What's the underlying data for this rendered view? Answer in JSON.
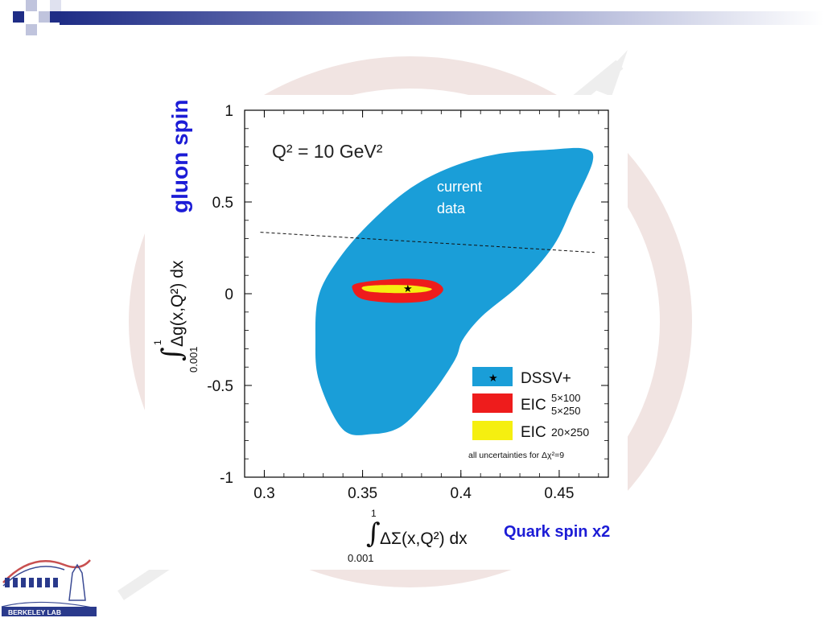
{
  "slide": {
    "gluon_annotation": "gluon spin",
    "quark_annotation": "Quark spin x2",
    "logo_text": "BERKELEY LAB",
    "annotation_color": "#1c1cd6"
  },
  "chart_data": {
    "type": "area",
    "title": "Q² = 10 GeV²",
    "xlabel": "∫ ΔΣ(x,Q²) dx",
    "ylabel": "∫ Δg(x,Q²) dx",
    "integral_lower": "0.001",
    "integral_upper": "1",
    "xlim": [
      0.29,
      0.475
    ],
    "ylim": [
      -1.0,
      1.0
    ],
    "xticks": [
      "0.3",
      "0.35",
      "0.4",
      "0.45"
    ],
    "xtick_values": [
      0.3,
      0.35,
      0.4,
      0.45
    ],
    "yticks": [
      "1",
      "0.5",
      "0",
      "-0.5",
      "-1"
    ],
    "ytick_values": [
      1,
      0.5,
      0,
      -0.5,
      -1
    ],
    "region_label": [
      "current",
      "data"
    ],
    "central_value": {
      "x": 0.373,
      "y": 0.03
    },
    "series": [
      {
        "name": "DSSV+",
        "color": "#1a9ed8",
        "points": [
          [
            0.34,
            -0.74
          ],
          [
            0.355,
            -0.765
          ],
          [
            0.37,
            -0.72
          ],
          [
            0.385,
            -0.55
          ],
          [
            0.397,
            -0.36
          ],
          [
            0.401,
            -0.25
          ],
          [
            0.411,
            -0.12
          ],
          [
            0.43,
            0.05
          ],
          [
            0.447,
            0.26
          ],
          [
            0.457,
            0.48
          ],
          [
            0.467,
            0.72
          ],
          [
            0.463,
            0.79
          ],
          [
            0.445,
            0.785
          ],
          [
            0.418,
            0.76
          ],
          [
            0.395,
            0.69
          ],
          [
            0.375,
            0.58
          ],
          [
            0.357,
            0.42
          ],
          [
            0.34,
            0.22
          ],
          [
            0.328,
            0.0
          ],
          [
            0.326,
            -0.25
          ],
          [
            0.328,
            -0.48
          ]
        ]
      },
      {
        "name": "EIC 5×100 5×250",
        "color": "#ee1c1c",
        "points": [
          [
            0.346,
            0.052
          ],
          [
            0.357,
            0.072
          ],
          [
            0.373,
            0.082
          ],
          [
            0.386,
            0.068
          ],
          [
            0.391,
            0.02
          ],
          [
            0.384,
            -0.035
          ],
          [
            0.37,
            -0.05
          ],
          [
            0.355,
            -0.04
          ],
          [
            0.348,
            -0.02
          ],
          [
            0.345,
            0.02
          ]
        ]
      },
      {
        "name": "EIC 20×250",
        "color": "#f5ef10",
        "points": [
          [
            0.35,
            0.037
          ],
          [
            0.36,
            0.047
          ],
          [
            0.375,
            0.045
          ],
          [
            0.385,
            0.028
          ],
          [
            0.381,
            0.01
          ],
          [
            0.368,
            0.003
          ],
          [
            0.353,
            0.012
          ]
        ]
      }
    ],
    "reference_line": {
      "style": "dashed",
      "points": [
        [
          0.298,
          0.335
        ],
        [
          0.468,
          0.225
        ]
      ]
    },
    "legend": {
      "position": "bottom-right",
      "entries": [
        {
          "label": "DSSV+",
          "sub": [],
          "color": "#1a9ed8",
          "marker": "★"
        },
        {
          "label": "EIC",
          "sub": [
            "5×100",
            "5×250"
          ],
          "color": "#ee1c1c",
          "marker": ""
        },
        {
          "label": "EIC",
          "sub": [
            "20×250"
          ],
          "color": "#f5ef10",
          "marker": ""
        }
      ],
      "note": "all uncertainties for Δχ²=9"
    }
  }
}
